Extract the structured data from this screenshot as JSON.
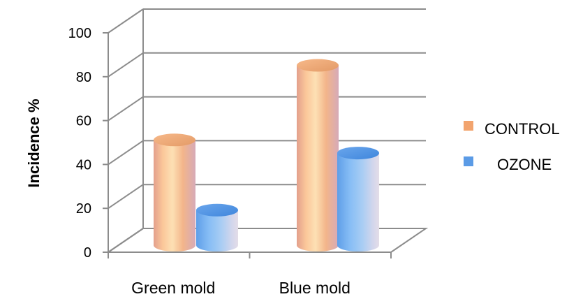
{
  "chart_data": {
    "type": "bar",
    "style": "3d-cylinder",
    "title": "",
    "xlabel": "",
    "ylabel": "Incidence %",
    "categories": [
      "Green mold",
      "Blue mold"
    ],
    "series": [
      {
        "name": "CONTROL",
        "values": [
          48,
          82
        ],
        "color": "#F2A46E"
      },
      {
        "name": "OZONE",
        "values": [
          16,
          42
        ],
        "color": "#5B9BE6"
      }
    ],
    "yticks": [
      0,
      20,
      40,
      60,
      80,
      100
    ],
    "ylim": [
      0,
      100
    ],
    "grid": true,
    "legend_position": "right"
  }
}
